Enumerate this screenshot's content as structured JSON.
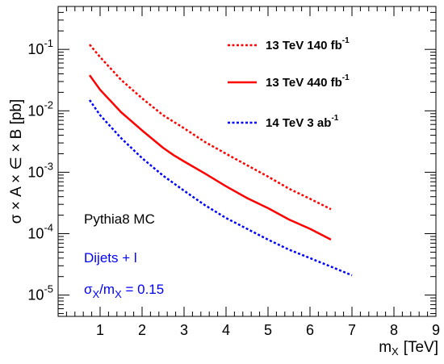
{
  "chart_data": {
    "type": "line",
    "xlabel_main": "m",
    "xlabel_sub": "X",
    "xlabel_unit": "[TeV]",
    "ylabel": "σ × A × ∈ × B [pb]",
    "xlim": [
      0,
      9
    ],
    "ylim": [
      4.5e-06,
      0.5
    ],
    "yscale": "log",
    "grid": false,
    "x_ticks": [
      1,
      2,
      3,
      4,
      5,
      6,
      7,
      8,
      9
    ],
    "y_major_exponents": [
      -5,
      -4,
      -3,
      -2,
      -1
    ],
    "legend_position": "top-right",
    "series": [
      {
        "legend_main": "13 TeV 140 fb",
        "legend_sup": "-1",
        "color": "#ff0000",
        "style": "dotted",
        "x": [
          0.75,
          1.0,
          1.5,
          2.0,
          2.5,
          3.0,
          3.5,
          4.0,
          4.5,
          5.0,
          5.5,
          6.0,
          6.5
        ],
        "y": [
          0.12,
          0.075,
          0.032,
          0.016,
          0.0085,
          0.0052,
          0.0031,
          0.002,
          0.0013,
          0.00085,
          0.00054,
          0.00037,
          0.00025
        ]
      },
      {
        "legend_main": "13 TeV 440 fb",
        "legend_sup": "-1",
        "color": "#ff0000",
        "style": "solid",
        "x": [
          0.75,
          1.0,
          1.5,
          2.0,
          2.5,
          2.75,
          3.0,
          3.5,
          4.0,
          4.5,
          5.0,
          5.5,
          6.0,
          6.5
        ],
        "y": [
          0.038,
          0.022,
          0.0095,
          0.0048,
          0.0025,
          0.0019,
          0.0015,
          0.00095,
          0.00059,
          0.00038,
          0.00026,
          0.00017,
          0.00012,
          8e-05
        ]
      },
      {
        "legend_main": "14 TeV 3 ab",
        "legend_sup": "-1",
        "color": "#0000ff",
        "style": "dotted",
        "x": [
          0.75,
          1.0,
          1.5,
          2.0,
          2.5,
          3.0,
          3.5,
          4.0,
          4.5,
          5.0,
          5.5,
          6.0,
          6.5,
          7.0
        ],
        "y": [
          0.015,
          0.0085,
          0.0036,
          0.0017,
          0.00088,
          0.0005,
          0.00029,
          0.00018,
          0.00012,
          8e-05,
          5.5e-05,
          4e-05,
          2.9e-05,
          2.1e-05
        ]
      }
    ],
    "annotations": {
      "generator": "Pythia8 MC",
      "channel": "Dijets + l",
      "width_main": "σ",
      "width_sub1": "X",
      "width_slash": "/m",
      "width_sub2": "X",
      "width_value": " = 0.15",
      "channel_color": "#0000ff"
    }
  }
}
